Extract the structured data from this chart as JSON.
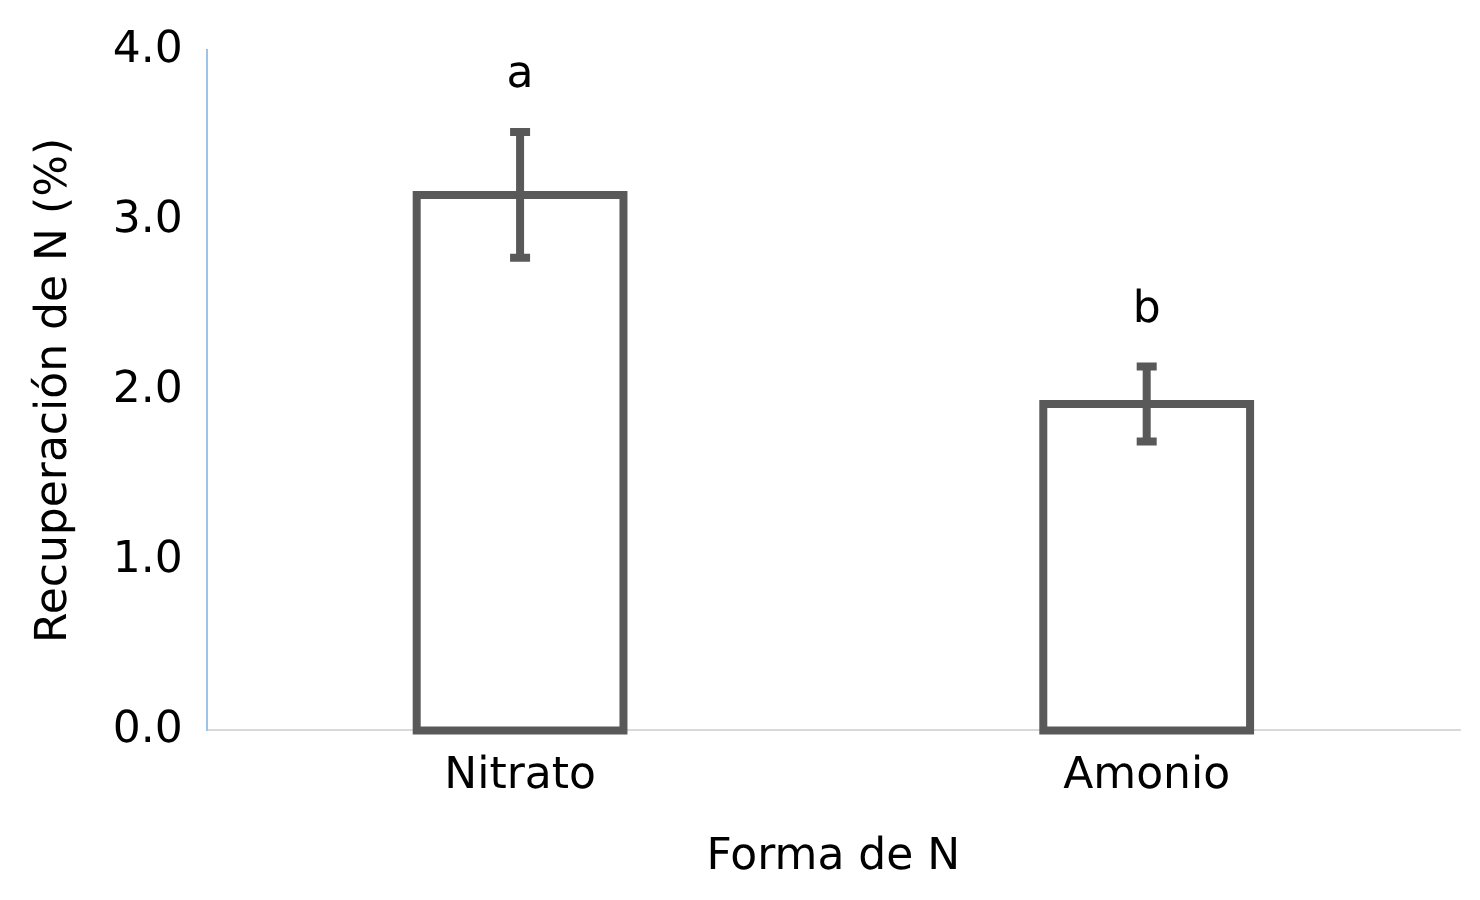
{
  "chart_data": {
    "type": "bar",
    "categories": [
      "Nitrato",
      "Amonio"
    ],
    "values": [
      3.15,
      1.92
    ],
    "errors": [
      0.37,
      0.22
    ],
    "color": "#595959",
    "xlabel": "Forma de N",
    "ylabel": "Recuperación de N (%)",
    "ylim": [
      0,
      4
    ],
    "yticks": [
      {
        "value": 0,
        "label": "0.0"
      },
      {
        "value": 1,
        "label": "1.0"
      },
      {
        "value": 2,
        "label": "2.0"
      },
      {
        "value": 3,
        "label": "3.0"
      },
      {
        "value": 4,
        "label": "4.0"
      }
    ],
    "annotations": [
      "a",
      "b"
    ],
    "grid": false,
    "legend": false
  }
}
